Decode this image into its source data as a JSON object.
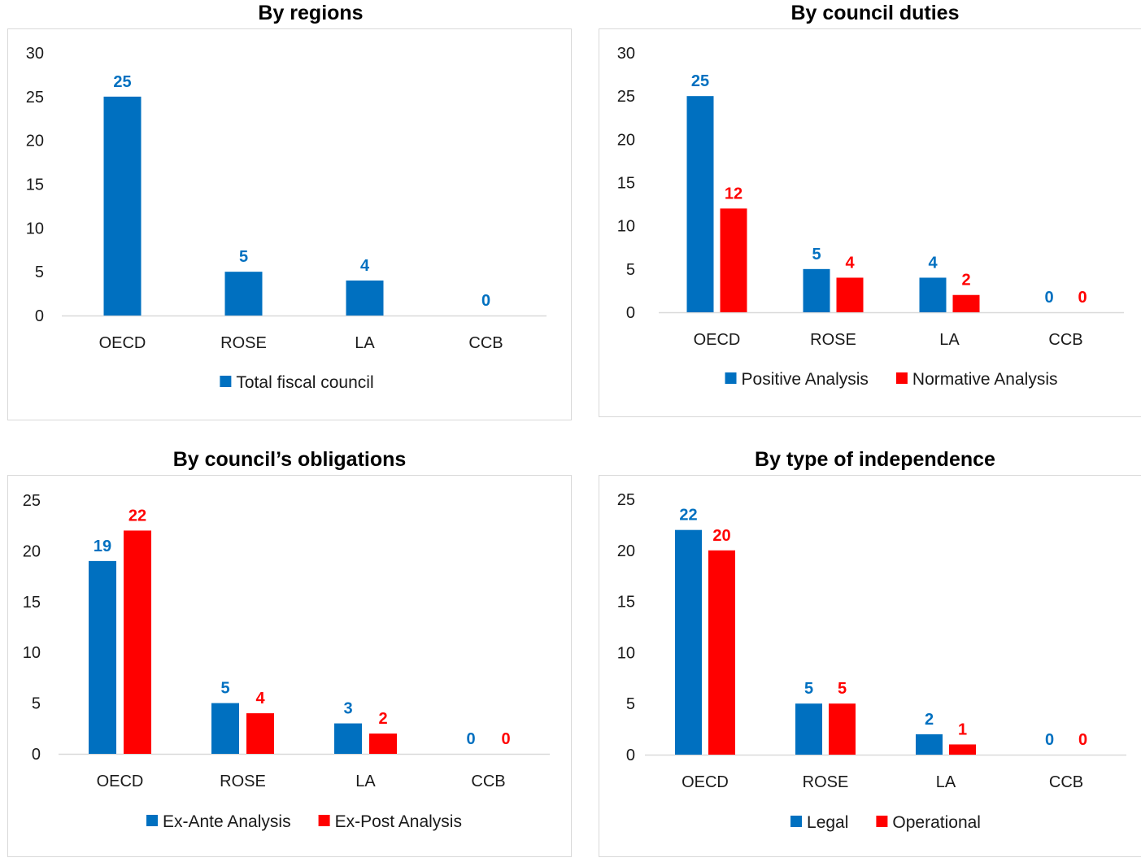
{
  "chart_data": [
    {
      "type": "bar",
      "title": "By regions",
      "categories": [
        "OECD",
        "ROSE",
        "LA",
        "CCB"
      ],
      "series": [
        {
          "name": "Total  fiscal council",
          "color": "#0070c0",
          "values": [
            25,
            5,
            4,
            0
          ]
        }
      ],
      "ylim": [
        0,
        30
      ],
      "yticks": [
        0,
        5,
        10,
        15,
        20,
        25,
        30
      ],
      "grid": false,
      "legend": "bottom"
    },
    {
      "type": "bar",
      "title": "By council duties",
      "categories": [
        "OECD",
        "ROSE",
        "LA",
        "CCB"
      ],
      "series": [
        {
          "name": "Positive Analysis",
          "color": "#0070c0",
          "values": [
            25,
            5,
            4,
            0
          ]
        },
        {
          "name": "Normative Analysis",
          "color": "#ff0000",
          "values": [
            12,
            4,
            2,
            0
          ]
        }
      ],
      "ylim": [
        0,
        30
      ],
      "yticks": [
        0,
        5,
        10,
        15,
        20,
        25,
        30
      ],
      "grid": false,
      "legend": "bottom"
    },
    {
      "type": "bar",
      "title": "By council’s obligations",
      "categories": [
        "OECD",
        "ROSE",
        "LA",
        "CCB"
      ],
      "series": [
        {
          "name": "Ex-Ante Analysis",
          "color": "#0070c0",
          "values": [
            19,
            5,
            3,
            0
          ]
        },
        {
          "name": "Ex-Post Analysis",
          "color": "#ff0000",
          "values": [
            22,
            4,
            2,
            0
          ]
        }
      ],
      "ylim": [
        0,
        25
      ],
      "yticks": [
        0,
        5,
        10,
        15,
        20,
        25
      ],
      "grid": false,
      "legend": "bottom"
    },
    {
      "type": "bar",
      "title": "By type of independence",
      "categories": [
        "OECD",
        "ROSE",
        "LA",
        "CCB"
      ],
      "series": [
        {
          "name": "Legal",
          "color": "#0070c0",
          "values": [
            22,
            5,
            2,
            0
          ]
        },
        {
          "name": "Operational",
          "color": "#ff0000",
          "values": [
            20,
            5,
            1,
            0
          ]
        }
      ],
      "ylim": [
        0,
        25
      ],
      "yticks": [
        0,
        5,
        10,
        15,
        20,
        25
      ],
      "grid": false,
      "legend": "bottom"
    }
  ]
}
